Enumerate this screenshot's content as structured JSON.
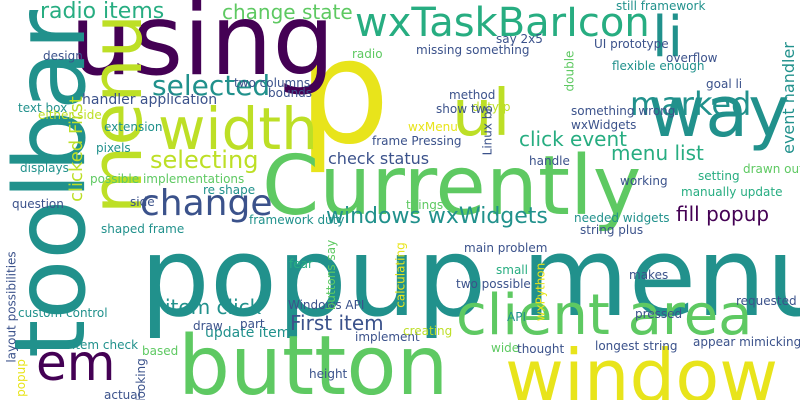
{
  "word_cloud": {
    "palette": {
      "purple": "#440154",
      "blue": "#3b528b",
      "teal": "#21918c",
      "green": "#27ad81",
      "lime": "#5ec962",
      "yellow": "#e8e41b",
      "gold": "#bddf26"
    },
    "words": [
      {
        "text": "popup menu",
        "color": "#21918c"
      },
      {
        "text": "p",
        "color": "#e8e41b"
      },
      {
        "text": "using",
        "color": "#440154"
      },
      {
        "text": "button",
        "color": "#5ec962"
      },
      {
        "text": "toolbar",
        "color": "#21918c"
      },
      {
        "text": "Currently",
        "color": "#5ec962"
      },
      {
        "text": "window",
        "color": "#e8e41b"
      },
      {
        "text": "menu",
        "color": "#bddf26"
      },
      {
        "text": "way",
        "color": "#21918c"
      },
      {
        "text": "client area",
        "color": "#5ec962"
      },
      {
        "text": "width",
        "color": "#bddf26"
      },
      {
        "text": "ul",
        "color": "#bddf26"
      },
      {
        "text": "li",
        "color": "#21918c"
      },
      {
        "text": "em",
        "color": "#440154"
      },
      {
        "text": "wxTaskBarIcon",
        "color": "#27ad81"
      },
      {
        "text": "change",
        "color": "#3b528b"
      },
      {
        "text": "marked",
        "color": "#21918c"
      },
      {
        "text": "selected",
        "color": "#21918c"
      },
      {
        "text": "fill popup",
        "color": "#440154"
      },
      {
        "text": "windows wxWidgets",
        "color": "#21918c"
      },
      {
        "text": "selecting",
        "color": "#bddf26"
      },
      {
        "text": "item click",
        "color": "#21918c"
      },
      {
        "text": "First item",
        "color": "#3b528b"
      },
      {
        "text": "radio items",
        "color": "#27ad81"
      },
      {
        "text": "change state",
        "color": "#5ec962"
      },
      {
        "text": "click event",
        "color": "#27ad81"
      },
      {
        "text": "menu list",
        "color": "#27ad81"
      },
      {
        "text": "clicked First",
        "color": "#bddf26"
      },
      {
        "text": "event handler",
        "color": "#21918c"
      },
      {
        "text": "check status",
        "color": "#3b528b"
      },
      {
        "text": "handler application",
        "color": "#3b528b"
      },
      {
        "text": "update item",
        "color": "#21918c"
      },
      {
        "text": "framework duty",
        "color": "#21918c"
      },
      {
        "text": "Windows API",
        "color": "#3b528b"
      },
      {
        "text": "still framework",
        "color": "#21918c"
      },
      {
        "text": "UI prototype",
        "color": "#3b528b"
      },
      {
        "text": "wxWidgets",
        "color": "#3b528b"
      },
      {
        "text": "manually update",
        "color": "#27ad81"
      },
      {
        "text": "setting",
        "color": "#27ad81"
      },
      {
        "text": "duty p",
        "color": "#bddf26"
      },
      {
        "text": "Linux br",
        "color": "#3b528b"
      },
      {
        "text": "goal li",
        "color": "#3b528b"
      },
      {
        "text": "flexible enough",
        "color": "#21918c"
      },
      {
        "text": "missing something",
        "color": "#3b528b"
      },
      {
        "text": "say 2x5",
        "color": "#3b528b"
      },
      {
        "text": "overflow",
        "color": "#3b528b"
      },
      {
        "text": "something wrong",
        "color": "#3b528b"
      },
      {
        "text": "show two",
        "color": "#3b528b"
      },
      {
        "text": "frame Pressing",
        "color": "#3b528b"
      },
      {
        "text": "two columns",
        "color": "#3b528b"
      },
      {
        "text": "bounds",
        "color": "#3b528b"
      },
      {
        "text": "handle",
        "color": "#3b528b"
      },
      {
        "text": "drawn outside",
        "color": "#5ec962"
      },
      {
        "text": "double",
        "color": "#5ec962"
      },
      {
        "text": "design",
        "color": "#3b528b"
      },
      {
        "text": "radio",
        "color": "#5ec962"
      },
      {
        "text": "method",
        "color": "#3b528b"
      },
      {
        "text": "text box",
        "color": "#21918c"
      },
      {
        "text": "either side",
        "color": "#bddf26"
      },
      {
        "text": "extension",
        "color": "#21918c"
      },
      {
        "text": "wxMenu",
        "color": "#e8e41b"
      },
      {
        "text": "pixels",
        "color": "#21918c"
      },
      {
        "text": "displays",
        "color": "#21918c"
      },
      {
        "text": "possible implementations",
        "color": "#5ec962"
      },
      {
        "text": "working",
        "color": "#3b528b"
      },
      {
        "text": "re shape",
        "color": "#21918c"
      },
      {
        "text": "things",
        "color": "#5ec962"
      },
      {
        "text": "question",
        "color": "#3b528b"
      },
      {
        "text": "side",
        "color": "#3b528b"
      },
      {
        "text": "shaped frame",
        "color": "#21918c"
      },
      {
        "text": "needed widgets",
        "color": "#21918c"
      },
      {
        "text": "string plus",
        "color": "#3b528b"
      },
      {
        "text": "main problem",
        "color": "#3b528b"
      },
      {
        "text": "buttons say",
        "color": "#5ec962"
      },
      {
        "text": "fear",
        "color": "#27ad81"
      },
      {
        "text": "small",
        "color": "#27ad81"
      },
      {
        "text": "makes",
        "color": "#3b528b"
      },
      {
        "text": "two possible",
        "color": "#3b528b"
      },
      {
        "text": "calculating",
        "color": "#e8e41b"
      },
      {
        "text": "wxPython",
        "color": "#e8e41b"
      },
      {
        "text": "requested li",
        "color": "#3b528b"
      },
      {
        "text": "layout possibilities",
        "color": "#3b528b"
      },
      {
        "text": "custom control",
        "color": "#21918c"
      },
      {
        "text": "API",
        "color": "#21918c"
      },
      {
        "text": "pressed",
        "color": "#3b528b"
      },
      {
        "text": "draw",
        "color": "#3b528b"
      },
      {
        "text": "part",
        "color": "#3b528b"
      },
      {
        "text": "implement",
        "color": "#3b528b"
      },
      {
        "text": "creating",
        "color": "#bddf26"
      },
      {
        "text": "item check",
        "color": "#21918c"
      },
      {
        "text": "based",
        "color": "#5ec962"
      },
      {
        "text": "appear mimicking",
        "color": "#3b528b"
      },
      {
        "text": "wide",
        "color": "#5ec962"
      },
      {
        "text": "thought",
        "color": "#3b528b"
      },
      {
        "text": "longest string",
        "color": "#3b528b"
      },
      {
        "text": "popup",
        "color": "#e8e41b"
      },
      {
        "text": "looking",
        "color": "#3b528b"
      },
      {
        "text": "height",
        "color": "#3b528b"
      },
      {
        "text": "actual",
        "color": "#3b528b"
      }
    ]
  }
}
